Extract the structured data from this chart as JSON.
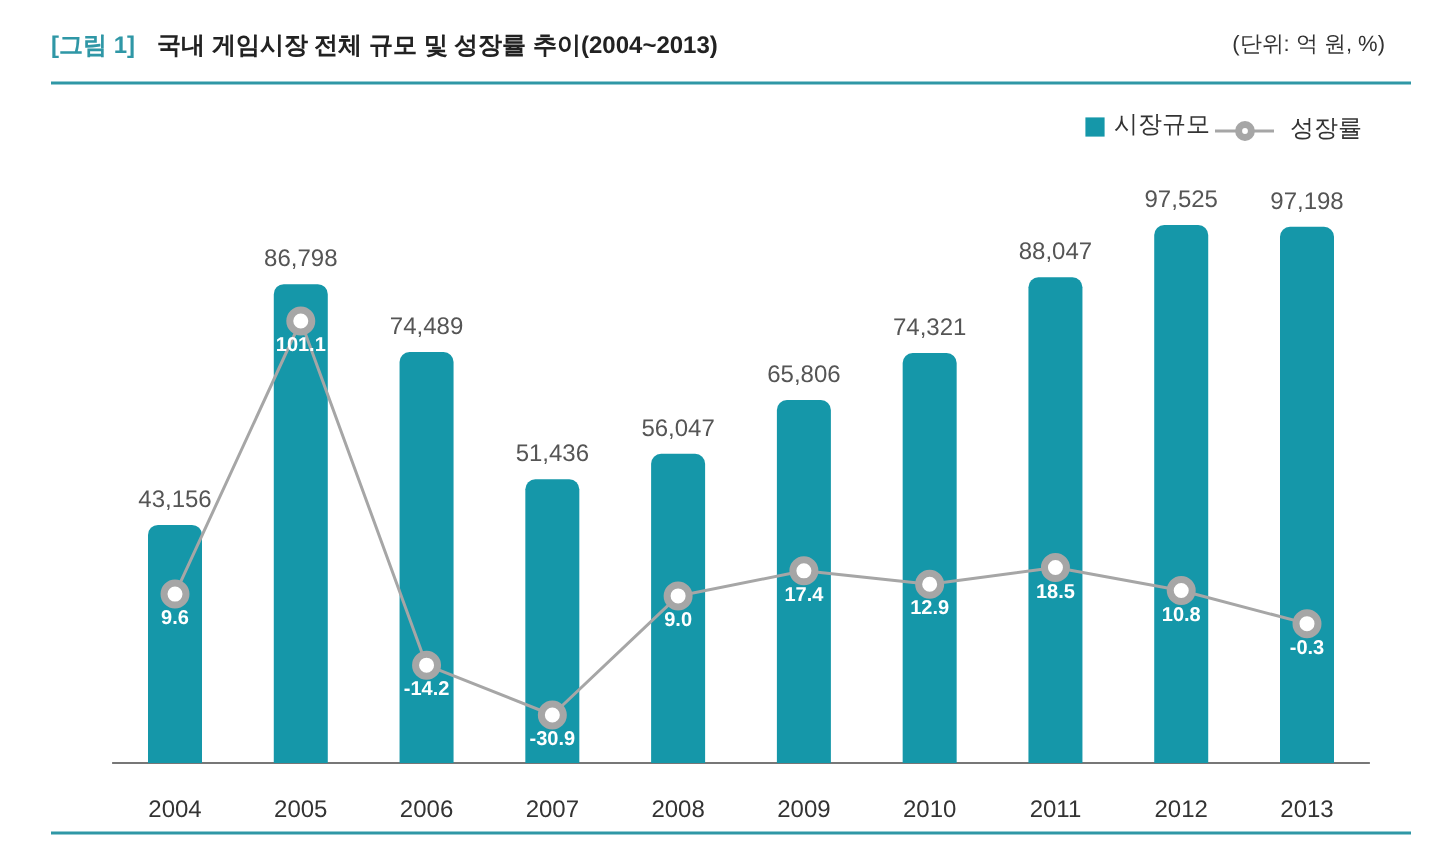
{
  "chart_data": {
    "type": "bar",
    "title": "[그림 1] 국내 게임시장 전체 규모 및 성장률 추이(2004~2013)",
    "annotations": [
      "(단위: 억 원, %)"
    ],
    "categories": [
      "2004",
      "2005",
      "2006",
      "2007",
      "2008",
      "2009",
      "2010",
      "2011",
      "2012",
      "2013"
    ],
    "series": [
      {
        "name": "시장규모",
        "color": "#1597a9",
        "values": [
          43156,
          86798,
          74489,
          51436,
          56047,
          65806,
          74321,
          88047,
          97525,
          97198
        ],
        "value_labels": [
          "43,156",
          "86,798",
          "74,489",
          "51,436",
          "56,047",
          "65,806",
          "74,321",
          "88,047",
          "97,525",
          "97,198"
        ]
      },
      {
        "name": "성장률",
        "type": "line",
        "axis": "y2",
        "color": "#a6a6a6",
        "values": [
          9.6,
          101.1,
          -14.2,
          -30.9,
          9.0,
          17.4,
          12.9,
          18.5,
          10.8,
          -0.3
        ],
        "value_labels": [
          "9.6",
          "101.1",
          "-14.2",
          "-30.9",
          "9.0",
          "17.4",
          "12.9",
          "18.5",
          "10.8",
          "-0.3"
        ]
      }
    ],
    "tick_labels": "x",
    "legend": "top right",
    "marker": "circle"
  }
}
